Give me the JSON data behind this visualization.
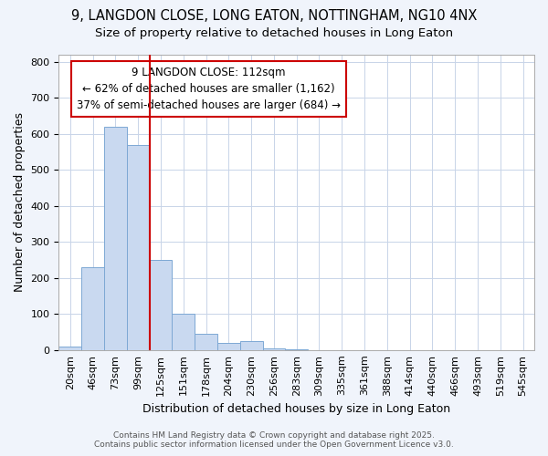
{
  "title_line1": "9, LANGDON CLOSE, LONG EATON, NOTTINGHAM, NG10 4NX",
  "title_line2": "Size of property relative to detached houses in Long Eaton",
  "xlabel": "Distribution of detached houses by size in Long Eaton",
  "ylabel": "Number of detached properties",
  "categories": [
    "20sqm",
    "46sqm",
    "73sqm",
    "99sqm",
    "125sqm",
    "151sqm",
    "178sqm",
    "204sqm",
    "230sqm",
    "256sqm",
    "283sqm",
    "309sqm",
    "335sqm",
    "361sqm",
    "388sqm",
    "414sqm",
    "440sqm",
    "466sqm",
    "493sqm",
    "519sqm",
    "545sqm"
  ],
  "values": [
    10,
    230,
    620,
    570,
    250,
    100,
    45,
    20,
    25,
    5,
    2,
    0,
    0,
    0,
    0,
    0,
    0,
    0,
    0,
    0,
    0
  ],
  "bar_color": "#c9d9f0",
  "bar_edge_color": "#7da8d4",
  "vline_x_index": 4,
  "vline_color": "#cc0000",
  "annotation_text": "9 LANGDON CLOSE: 112sqm\n← 62% of detached houses are smaller (1,162)\n37% of semi-detached houses are larger (684) →",
  "annotation_box_color": "#cc0000",
  "annotation_bg_color": "#ffffff",
  "ylim": [
    0,
    820
  ],
  "yticks": [
    0,
    100,
    200,
    300,
    400,
    500,
    600,
    700,
    800
  ],
  "grid_color": "#c8d4e8",
  "bg_color": "#f0f4fb",
  "plot_bg_color": "#ffffff",
  "footer_line1": "Contains HM Land Registry data © Crown copyright and database right 2025.",
  "footer_line2": "Contains public sector information licensed under the Open Government Licence v3.0.",
  "title_fontsize": 10.5,
  "subtitle_fontsize": 9.5,
  "axis_label_fontsize": 9,
  "tick_fontsize": 8,
  "annotation_fontsize": 8.5
}
